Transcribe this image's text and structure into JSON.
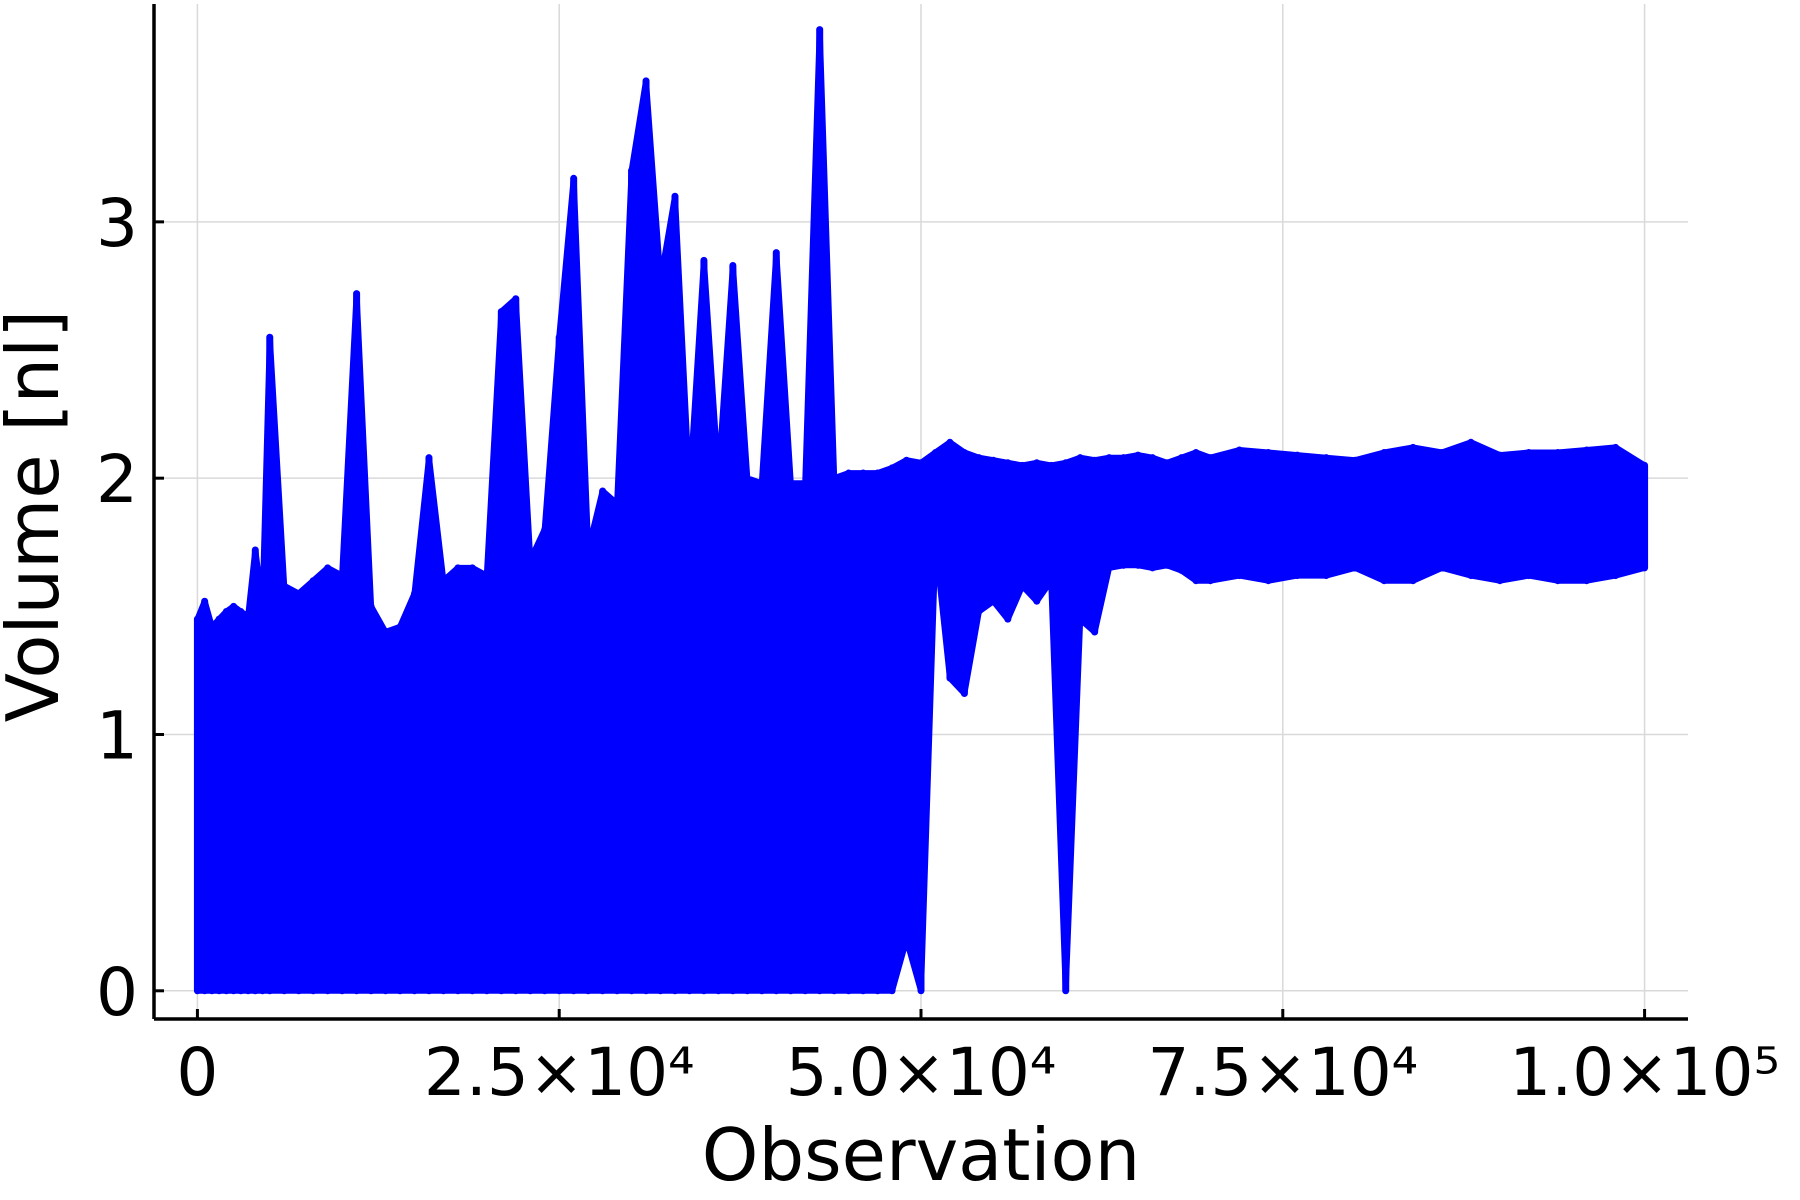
{
  "chart_data": {
    "type": "line",
    "title": "",
    "xlabel": "Observation",
    "ylabel": "Volume [nl]",
    "xlim": [
      -3000,
      103000
    ],
    "ylim": [
      -0.11,
      3.85
    ],
    "grid": true,
    "legend": "none",
    "series_color": "#0000ff",
    "x_ticks": [
      {
        "value": 0,
        "label": "0"
      },
      {
        "value": 25000,
        "label": "2.5×10⁴"
      },
      {
        "value": 50000,
        "label": "5.0×10⁴"
      },
      {
        "value": 75000,
        "label": "7.5×10⁴"
      },
      {
        "value": 100000,
        "label": "1.0×10⁵"
      }
    ],
    "y_ticks": [
      {
        "value": 0,
        "label": "0"
      },
      {
        "value": 1,
        "label": "1"
      },
      {
        "value": 2,
        "label": "2"
      },
      {
        "value": 3,
        "label": "3"
      }
    ],
    "series": [
      {
        "x": [
          0,
          500,
          1000,
          1500,
          2000,
          2500,
          3000,
          3500,
          4000,
          4500,
          5000,
          6000,
          7000,
          8000,
          9000,
          10000,
          11000,
          12000,
          13000,
          14000,
          15000,
          16000,
          17000,
          18000,
          19000,
          20000,
          21000,
          22000,
          23000,
          24000,
          25000,
          26000,
          27000,
          28000,
          29000,
          30000,
          31000,
          32000,
          33000,
          34000,
          35000,
          36000,
          37000,
          38000,
          39000,
          40000,
          41000,
          42000,
          43000,
          44000,
          45000,
          46000,
          47000,
          48000,
          49000,
          50000,
          51000,
          52000,
          53000,
          54000,
          55000,
          56000,
          57000,
          58000,
          59000,
          60000,
          61000,
          62000,
          63000,
          64000,
          65000,
          66000,
          67000,
          68000,
          69000,
          70000,
          72000,
          74000,
          76000,
          78000,
          80000,
          82000,
          84000,
          86000,
          88000,
          90000,
          92000,
          94000,
          96000,
          98000,
          100000
        ],
        "low": [
          0,
          0,
          0,
          0,
          0,
          0,
          0,
          0,
          0,
          0,
          0,
          0,
          0,
          0,
          0,
          0,
          0,
          0,
          0,
          0,
          0,
          0,
          0,
          0,
          0,
          0,
          0,
          0,
          0,
          0,
          0,
          0,
          0,
          0,
          0,
          0,
          0,
          0,
          0,
          0,
          0,
          0,
          0,
          0,
          0,
          0,
          0,
          0,
          0,
          0,
          0,
          0,
          0,
          0,
          0.2,
          0,
          1.75,
          1.22,
          1.16,
          1.48,
          1.52,
          1.45,
          1.58,
          1.52,
          1.6,
          0,
          1.45,
          1.4,
          1.65,
          1.66,
          1.66,
          1.65,
          1.66,
          1.64,
          1.6,
          1.6,
          1.62,
          1.6,
          1.62,
          1.62,
          1.65,
          1.6,
          1.6,
          1.65,
          1.62,
          1.6,
          1.62,
          1.6,
          1.6,
          1.62,
          1.65
        ],
        "high": [
          1.45,
          1.52,
          1.42,
          1.45,
          1.48,
          1.5,
          1.48,
          1.46,
          1.72,
          1.5,
          2.55,
          1.58,
          1.55,
          1.6,
          1.65,
          1.62,
          2.72,
          1.5,
          1.4,
          1.42,
          1.55,
          2.08,
          1.6,
          1.65,
          1.65,
          1.62,
          2.65,
          2.7,
          1.68,
          1.8,
          2.55,
          3.17,
          1.72,
          1.95,
          1.9,
          3.2,
          3.55,
          2.77,
          3.1,
          1.95,
          2.85,
          2.0,
          2.83,
          2.0,
          1.98,
          2.88,
          1.98,
          1.98,
          3.75,
          2.0,
          2.02,
          2.02,
          2.02,
          2.04,
          2.07,
          2.06,
          2.1,
          2.14,
          2.1,
          2.08,
          2.07,
          2.06,
          2.05,
          2.06,
          2.05,
          2.06,
          2.08,
          2.07,
          2.08,
          2.08,
          2.09,
          2.08,
          2.06,
          2.08,
          2.1,
          2.08,
          2.11,
          2.1,
          2.09,
          2.08,
          2.07,
          2.1,
          2.12,
          2.1,
          2.14,
          2.09,
          2.1,
          2.1,
          2.11,
          2.12,
          2.05
        ]
      }
    ]
  }
}
